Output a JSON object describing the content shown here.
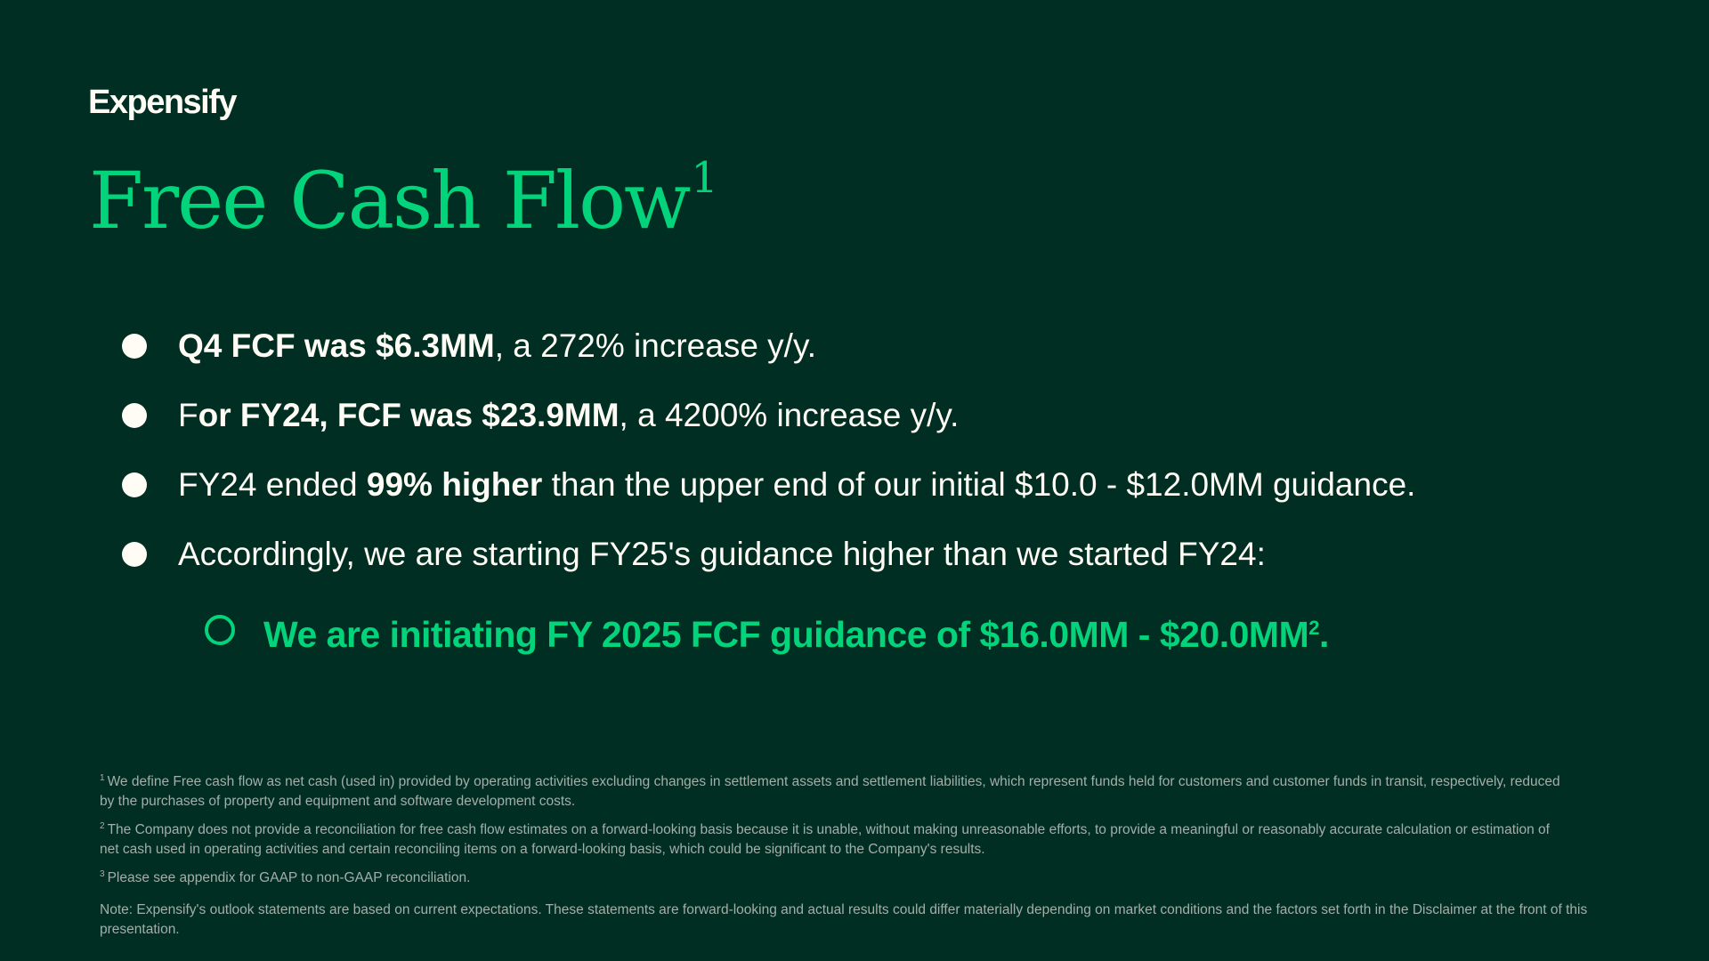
{
  "logo": "Expensify",
  "title": {
    "text": "Free Cash Flow",
    "sup": "1"
  },
  "bullets": [
    {
      "runs": [
        {
          "text": "Q4 FCF was $6.3MM",
          "bold": true
        },
        {
          "text": ", a 272% increase y/y.",
          "bold": false
        }
      ]
    },
    {
      "runs": [
        {
          "text": "F",
          "bold": false
        },
        {
          "text": "or FY24, FCF was $23.9MM",
          "bold": true
        },
        {
          "text": ", a 4200% increase y/y.",
          "bold": false
        }
      ]
    },
    {
      "runs": [
        {
          "text": "FY24 ended ",
          "bold": false
        },
        {
          "text": "99% higher",
          "bold": true
        },
        {
          "text": " than the upper end of our initial $10.0 - $12.0MM guidance.",
          "bold": false
        }
      ]
    },
    {
      "runs": [
        {
          "text": "Accordingly, we are starting FY25's guidance higher than we started FY24:",
          "bold": false
        }
      ]
    }
  ],
  "sub_bullet": {
    "text": "We are initiating FY 2025 FCF guidance of $16.0MM - $20.0MM",
    "sup": "2",
    "end": "."
  },
  "footnotes": [
    {
      "marker": "1",
      "text": "We define Free cash flow as net cash (used in) provided by operating activities excluding changes in settlement assets and settlement liabilities, which represent funds held for customers and customer funds in transit, respectively, reduced by the purchases of property and equipment and software development costs."
    },
    {
      "marker": "2",
      "text": "The Company does not provide a reconciliation for free cash flow estimates on a forward-looking basis because it is unable, without making unreasonable efforts, to provide a meaningful or reasonably accurate calculation or estimation of net cash used in operating activities and certain reconciling items on a forward-looking basis, which could be significant to the Company's results."
    },
    {
      "marker": "3",
      "text": "Please see appendix for GAAP to non-GAAP reconciliation."
    }
  ],
  "note": "Note: Expensify's outlook statements are based on current expectations. These statements are forward-looking and actual results could differ materially depending on market conditions and the factors set forth in the Disclaimer at the front of this presentation."
}
